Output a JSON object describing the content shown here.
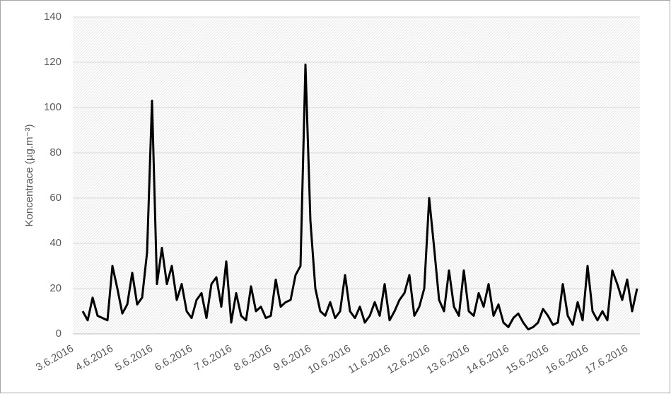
{
  "chart_data": {
    "type": "line",
    "y_label": "Koncentrace (µg.m⁻³)",
    "categories": [
      "3.6.2016",
      null,
      null,
      null,
      null,
      null,
      null,
      null,
      "4.6.2016",
      null,
      null,
      null,
      null,
      null,
      null,
      null,
      "5.6.2016",
      null,
      null,
      null,
      null,
      null,
      null,
      null,
      "6.6.2016",
      null,
      null,
      null,
      null,
      null,
      null,
      null,
      "7.6.2016",
      null,
      null,
      null,
      null,
      null,
      null,
      null,
      "8.6.2016",
      null,
      null,
      null,
      null,
      null,
      null,
      null,
      "9.6.2016",
      null,
      null,
      null,
      null,
      null,
      null,
      null,
      "10.6.2016",
      null,
      null,
      null,
      null,
      null,
      null,
      null,
      "11.6.2016",
      null,
      null,
      null,
      null,
      null,
      null,
      null,
      "12.6.2016",
      null,
      null,
      null,
      null,
      null,
      null,
      null,
      "13.6.2016",
      null,
      null,
      null,
      null,
      null,
      null,
      null,
      "14.6.2016",
      null,
      null,
      null,
      null,
      null,
      null,
      null,
      "15.6.2016",
      null,
      null,
      null,
      null,
      null,
      null,
      null,
      "16.6.2016",
      null,
      null,
      null,
      null,
      null,
      null,
      null,
      "17.6.2016",
      null,
      null
    ],
    "values": [
      null,
      null,
      10,
      6,
      16,
      8,
      7,
      6,
      30,
      20,
      9,
      13,
      27,
      13,
      16,
      36,
      103,
      22,
      38,
      22,
      30,
      15,
      22,
      10,
      7,
      15,
      18,
      7,
      22,
      25,
      12,
      32,
      5,
      18,
      8,
      6,
      21,
      10,
      12,
      7,
      8,
      24,
      12,
      14,
      15,
      26,
      30,
      119,
      50,
      20,
      10,
      8,
      14,
      7,
      10,
      26,
      10,
      7,
      12,
      5,
      8,
      14,
      8,
      22,
      6,
      10,
      15,
      18,
      26,
      8,
      12,
      20,
      60,
      38,
      15,
      10,
      28,
      12,
      8,
      28,
      10,
      8,
      18,
      12,
      22,
      8,
      13,
      5,
      3,
      7,
      9,
      5,
      2,
      3,
      5,
      11,
      8,
      4,
      5,
      22,
      8,
      4,
      14,
      6,
      30,
      10,
      6,
      10,
      6,
      28,
      22,
      15,
      24,
      10,
      20
    ],
    "color": "#000000",
    "ylim": [
      0,
      140
    ],
    "yticks": [
      0,
      20,
      40,
      60,
      80,
      100,
      120,
      140
    ],
    "grid": true
  }
}
